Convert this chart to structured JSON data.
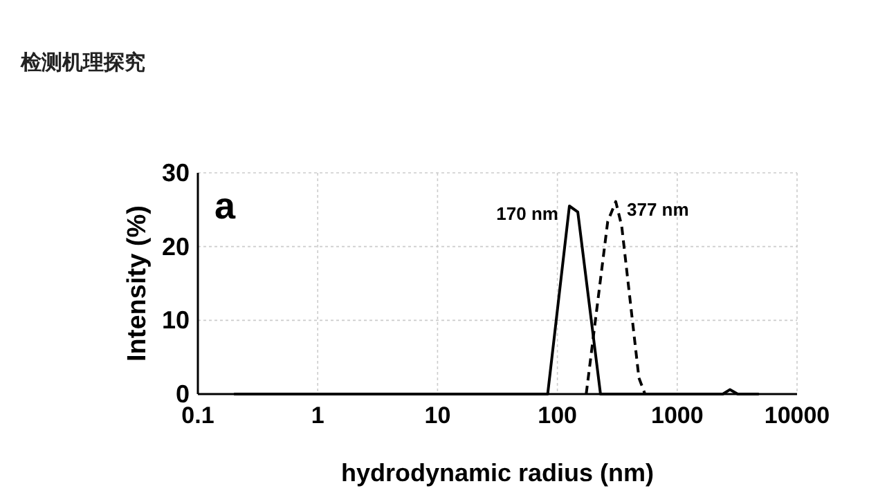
{
  "chart_data": {
    "type": "line",
    "title": "检测机理探究",
    "xlabel": "hydrodynamic radius (nm)",
    "ylabel": "Intensity (%)",
    "log": "x",
    "xlim": [
      0.1,
      10000
    ],
    "xticks": [
      0.1,
      1,
      10,
      100,
      1000,
      10000
    ],
    "ylim": [
      0,
      30
    ],
    "yticks": [
      0,
      10,
      20,
      30
    ],
    "grid": true,
    "annotations": [
      "a",
      {
        "text": "170 nm",
        "x": 126,
        "y": 25.5
      },
      {
        "text": "377 nm",
        "x": 307,
        "y": 26.1
      }
    ],
    "series": [
      {
        "color": "#000000",
        "line_style": "solid",
        "x": [
          0.2,
          83,
          126,
          148,
          229,
          2400,
          2750,
          3200,
          4800
        ],
        "values": [
          0,
          0,
          25.5,
          24.7,
          0,
          0,
          0.6,
          0,
          0
        ]
      },
      {
        "color": "#000000",
        "line_style": "dashed",
        "x": [
          174,
          263,
          307,
          344,
          479,
          538
        ],
        "values": [
          0,
          23.4,
          26.1,
          22.8,
          2.2,
          0
        ]
      }
    ]
  }
}
